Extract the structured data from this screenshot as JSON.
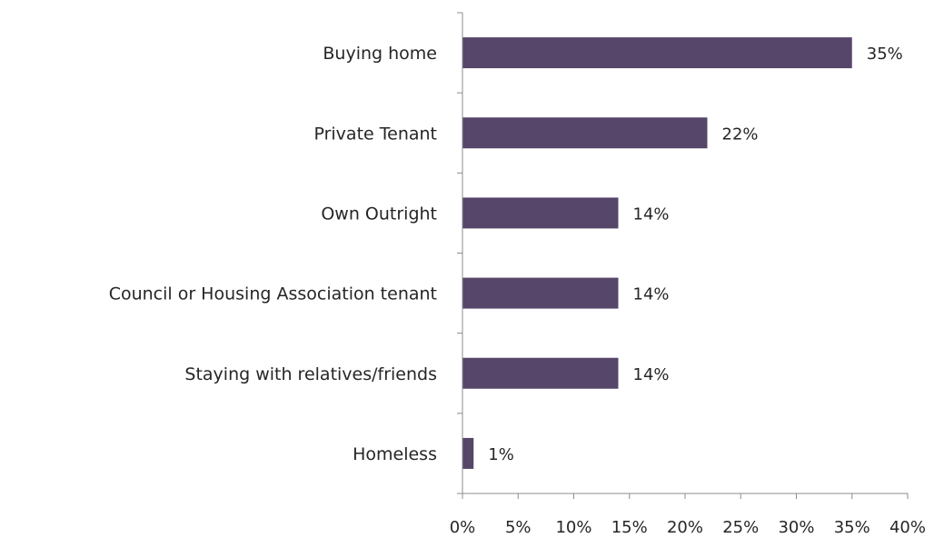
{
  "chart_data": {
    "type": "bar",
    "orientation": "horizontal",
    "categories": [
      "Buying home",
      "Private Tenant",
      "Own Outright",
      "Council or Housing Association tenant",
      "Staying with relatives/friends",
      "Homeless"
    ],
    "values": [
      35,
      22,
      14,
      14,
      14,
      1
    ],
    "value_labels": [
      "35%",
      "22%",
      "14%",
      "14%",
      "14%",
      "1%"
    ],
    "xlim": [
      0,
      40
    ],
    "x_ticks": [
      0,
      5,
      10,
      15,
      20,
      25,
      30,
      35,
      40
    ],
    "x_tick_labels": [
      "0%",
      "5%",
      "10%",
      "15%",
      "20%",
      "25%",
      "30%",
      "35%",
      "40%"
    ],
    "title": "",
    "xlabel": "",
    "ylabel": "",
    "grid": false,
    "legend": "none",
    "bar_color": "#56466a"
  }
}
